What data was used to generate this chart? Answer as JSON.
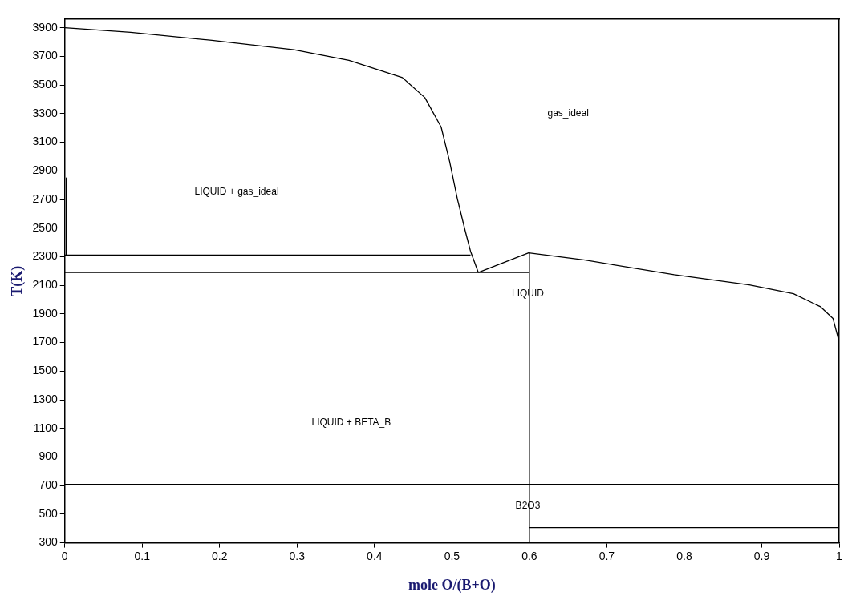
{
  "chart_data": {
    "type": "line",
    "xlabel": "mole O/(B+O)",
    "ylabel": "T(K)",
    "xlim": [
      0,
      1
    ],
    "ylim": [
      300,
      3960
    ],
    "xticks": [
      0,
      0.1,
      0.2,
      0.3,
      0.4,
      0.5,
      0.6,
      0.7,
      0.8,
      0.9,
      1
    ],
    "yticks": [
      300,
      500,
      700,
      900,
      1100,
      1300,
      1500,
      1700,
      1900,
      2100,
      2300,
      2500,
      2700,
      2900,
      3100,
      3300,
      3500,
      3700,
      3900
    ],
    "grid": false,
    "legend": false,
    "marker": "none",
    "series": [
      {
        "color": "#000000",
        "x": [
          0,
          0.085,
          0.19,
          0.296,
          0.367,
          0.436,
          0.465,
          0.486,
          0.497,
          0.507,
          0.517,
          0.524,
          0.534
        ],
        "values": [
          3900,
          3868,
          3812,
          3747,
          3672,
          3552,
          3412,
          3207,
          2965,
          2704,
          2483,
          2338,
          2190
        ]
      },
      {
        "color": "#000000",
        "x": [
          0.534,
          0.599,
          0.672,
          0.787,
          0.884,
          0.941,
          0.976,
          0.992,
          0.999,
          1
        ],
        "values": [
          2190,
          2327,
          2276,
          2174,
          2103,
          2041,
          1950,
          1869,
          1725,
          1670
        ]
      },
      {
        "color": "#000000",
        "x": [
          0.002,
          0.002
        ],
        "values": [
          2850,
          2312
        ]
      },
      {
        "color": "#000000",
        "x": [
          0,
          0.524
        ],
        "values": [
          2312,
          2312
        ]
      },
      {
        "color": "#000000",
        "x": [
          0,
          0.6
        ],
        "values": [
          2190,
          2190
        ]
      },
      {
        "color": "#000000",
        "x": [
          0.6,
          0.6
        ],
        "values": [
          2327,
          300
        ]
      },
      {
        "color": "#000000",
        "x": [
          0,
          1
        ],
        "values": [
          708,
          708
        ]
      },
      {
        "color": "#000000",
        "x": [
          0.6,
          1
        ],
        "values": [
          406,
          406
        ]
      }
    ],
    "annotations": [
      "gas_ideal",
      "LIQUID + gas_ideal",
      "LIQUID",
      "LIQUID + BETA_B",
      "B2O3"
    ]
  }
}
